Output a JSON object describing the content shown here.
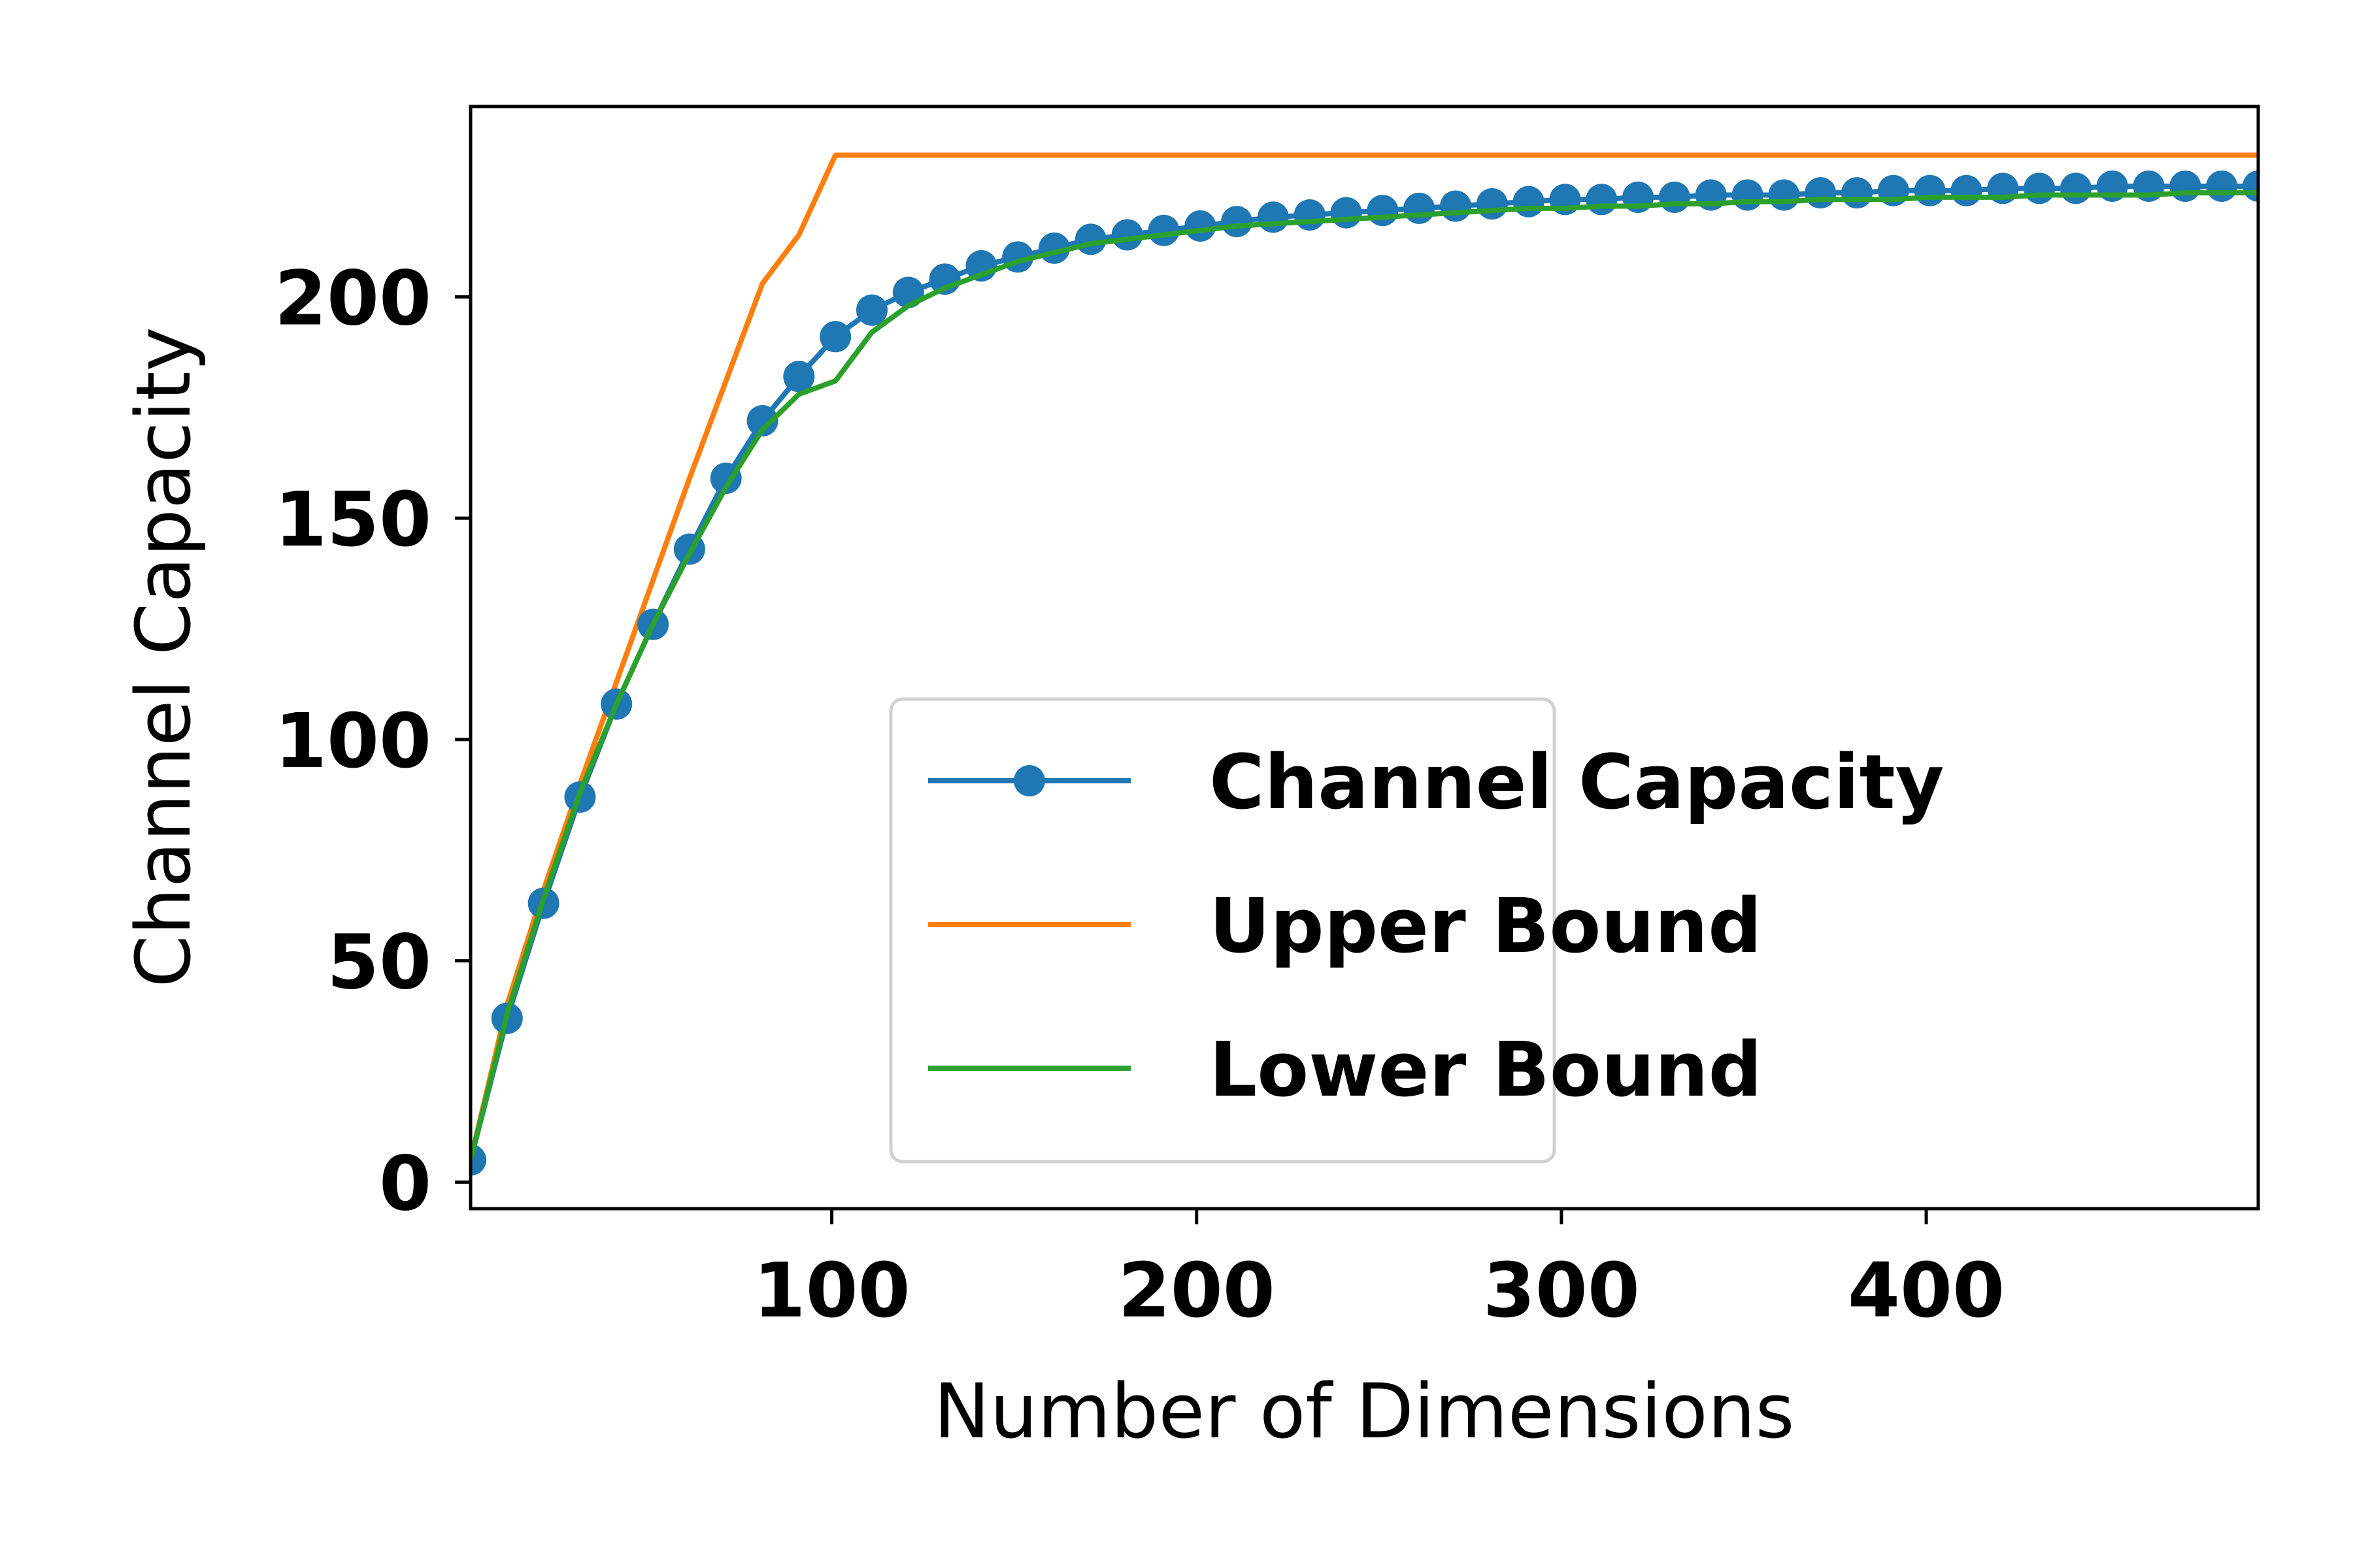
{
  "chart_data": {
    "type": "line",
    "title": "",
    "xlabel": "Number of Dimensions",
    "ylabel": "Channel Capacity",
    "xlim": [
      1,
      491
    ],
    "ylim": [
      -6,
      243
    ],
    "xticks": [
      100,
      200,
      300,
      400
    ],
    "yticks": [
      0,
      50,
      100,
      150,
      200
    ],
    "grid": false,
    "legend_position": "lower right",
    "series": [
      {
        "name": "Channel Capacity",
        "color": "#1f77b4",
        "marker": "circle",
        "x": [
          1,
          11,
          21,
          31,
          41,
          51,
          61,
          71,
          81,
          91,
          101,
          111,
          121,
          131,
          141,
          151,
          161,
          171,
          181,
          191,
          201,
          211,
          221,
          231,
          241,
          251,
          261,
          271,
          281,
          291,
          301,
          311,
          321,
          331,
          341,
          351,
          361,
          371,
          381,
          391,
          401,
          411,
          421,
          431,
          441,
          451,
          461,
          471,
          481,
          491
        ],
        "y": [
          5,
          37,
          63,
          87,
          108,
          126,
          143,
          159,
          172,
          182,
          191,
          197,
          201,
          204,
          207,
          209,
          211,
          213,
          214,
          215,
          216,
          217,
          218,
          218.5,
          219,
          219.5,
          220,
          220.5,
          221,
          221.5,
          222,
          222,
          222.5,
          222.5,
          223,
          223,
          223,
          223.5,
          223.5,
          224,
          224,
          224,
          224.5,
          224.5,
          224.5,
          225,
          225,
          225,
          225,
          225
        ]
      },
      {
        "name": "Upper Bound",
        "color": "#ff7f0e",
        "x": [
          1,
          11,
          21,
          31,
          41,
          51,
          61,
          71,
          81,
          91,
          101,
          491
        ],
        "y": [
          5,
          40,
          66,
          90,
          113,
          136,
          159,
          181,
          203,
          214,
          232,
          232
        ]
      },
      {
        "name": "Lower Bound",
        "color": "#2ca02c",
        "x": [
          1,
          11,
          21,
          31,
          41,
          51,
          61,
          71,
          81,
          91,
          101,
          111,
          121,
          131,
          141,
          151,
          161,
          171,
          181,
          191,
          201,
          211,
          221,
          231,
          241,
          251,
          261,
          271,
          281,
          291,
          301,
          311,
          321,
          331,
          341,
          351,
          361,
          371,
          381,
          391,
          401,
          411,
          421,
          431,
          441,
          451,
          461,
          471,
          481,
          491
        ],
        "y": [
          5,
          38,
          64,
          88,
          108,
          126,
          142,
          157,
          170,
          178,
          181,
          192,
          198,
          202,
          205,
          208,
          210,
          212,
          213,
          214,
          215,
          216,
          216.5,
          217,
          217.5,
          218,
          218.5,
          219,
          219.5,
          220,
          220,
          220.5,
          220.5,
          221,
          221,
          221.5,
          221.5,
          222,
          222,
          222,
          222.5,
          222.5,
          222.5,
          223,
          223,
          223,
          223,
          223.5,
          223.5,
          223.5
        ]
      }
    ]
  }
}
